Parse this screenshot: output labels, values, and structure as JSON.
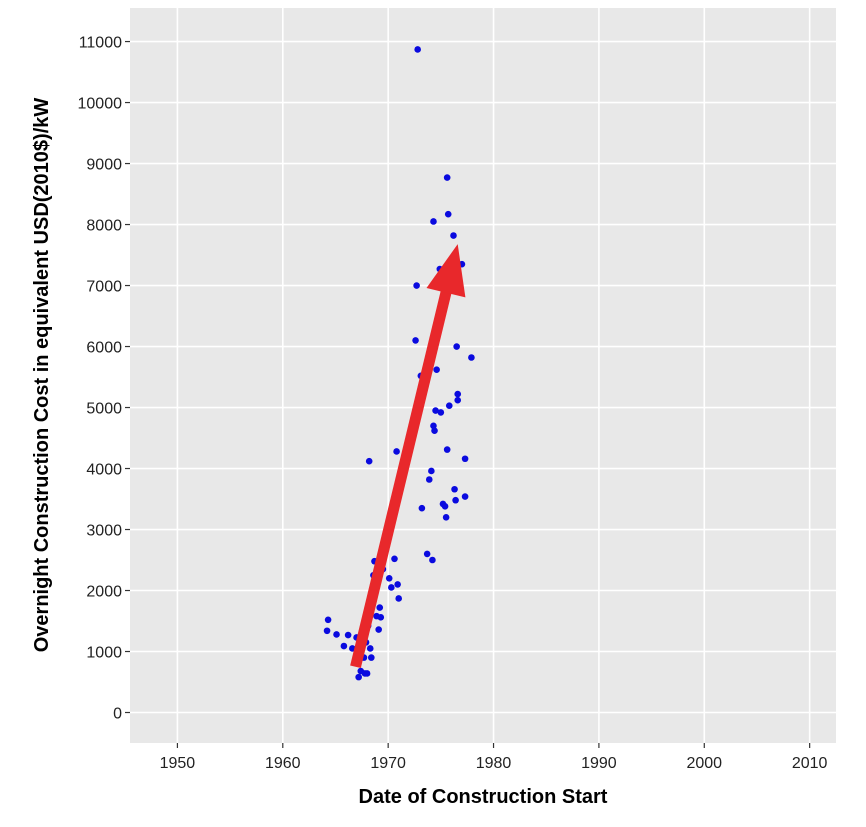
{
  "chart_data": {
    "type": "scatter",
    "xlabel": "Date of Construction Start",
    "ylabel": "Overnight Construction Cost in equivalent USD(2010$)/kW",
    "xlim": [
      1945.5,
      2012.5
    ],
    "ylim": [
      -500,
      11550
    ],
    "x_ticks": [
      1950,
      1960,
      1970,
      1980,
      1990,
      2000,
      2010
    ],
    "y_ticks": [
      0,
      1000,
      2000,
      3000,
      4000,
      5000,
      6000,
      7000,
      8000,
      9000,
      10000,
      11000
    ],
    "grid": true,
    "legend": "none",
    "colors": {
      "panel": "#e8e8e8",
      "grid": "#ffffff",
      "point": "#0a0adf",
      "arrow": "#e8282b"
    },
    "points": [
      {
        "x": 1964.3,
        "y": 1520
      },
      {
        "x": 1964.2,
        "y": 1340
      },
      {
        "x": 1965.1,
        "y": 1280
      },
      {
        "x": 1965.8,
        "y": 1090
      },
      {
        "x": 1966.2,
        "y": 1270
      },
      {
        "x": 1966.6,
        "y": 1050
      },
      {
        "x": 1967.0,
        "y": 1230
      },
      {
        "x": 1967.2,
        "y": 580
      },
      {
        "x": 1967.4,
        "y": 680
      },
      {
        "x": 1967.5,
        "y": 1300
      },
      {
        "x": 1967.7,
        "y": 900
      },
      {
        "x": 1967.8,
        "y": 640
      },
      {
        "x": 1967.9,
        "y": 1150
      },
      {
        "x": 1968.0,
        "y": 640
      },
      {
        "x": 1968.1,
        "y": 1420
      },
      {
        "x": 1968.2,
        "y": 1720
      },
      {
        "x": 1968.3,
        "y": 1050
      },
      {
        "x": 1968.4,
        "y": 900
      },
      {
        "x": 1968.2,
        "y": 4120
      },
      {
        "x": 1968.6,
        "y": 2250
      },
      {
        "x": 1968.7,
        "y": 2480
      },
      {
        "x": 1968.9,
        "y": 1580
      },
      {
        "x": 1969.1,
        "y": 1360
      },
      {
        "x": 1969.2,
        "y": 1720
      },
      {
        "x": 1969.3,
        "y": 1560
      },
      {
        "x": 1969.5,
        "y": 2350
      },
      {
        "x": 1970.1,
        "y": 2200
      },
      {
        "x": 1970.3,
        "y": 2050
      },
      {
        "x": 1970.6,
        "y": 2520
      },
      {
        "x": 1970.9,
        "y": 2100
      },
      {
        "x": 1971.0,
        "y": 1870
      },
      {
        "x": 1970.8,
        "y": 4280
      },
      {
        "x": 1972.6,
        "y": 6100
      },
      {
        "x": 1972.7,
        "y": 7000
      },
      {
        "x": 1972.8,
        "y": 10870
      },
      {
        "x": 1973.1,
        "y": 5520
      },
      {
        "x": 1973.2,
        "y": 3350
      },
      {
        "x": 1973.7,
        "y": 2600
      },
      {
        "x": 1973.9,
        "y": 3820
      },
      {
        "x": 1974.1,
        "y": 3960
      },
      {
        "x": 1974.2,
        "y": 2500
      },
      {
        "x": 1974.3,
        "y": 4700
      },
      {
        "x": 1974.4,
        "y": 4620
      },
      {
        "x": 1974.5,
        "y": 4950
      },
      {
        "x": 1974.3,
        "y": 8050
      },
      {
        "x": 1974.6,
        "y": 5620
      },
      {
        "x": 1974.9,
        "y": 7270
      },
      {
        "x": 1975.0,
        "y": 4920
      },
      {
        "x": 1975.2,
        "y": 3420
      },
      {
        "x": 1975.4,
        "y": 3380
      },
      {
        "x": 1975.5,
        "y": 3200
      },
      {
        "x": 1975.6,
        "y": 4310
      },
      {
        "x": 1975.6,
        "y": 8770
      },
      {
        "x": 1975.7,
        "y": 8170
      },
      {
        "x": 1975.8,
        "y": 5030
      },
      {
        "x": 1976.2,
        "y": 7820
      },
      {
        "x": 1976.3,
        "y": 3660
      },
      {
        "x": 1976.4,
        "y": 3480
      },
      {
        "x": 1976.5,
        "y": 6000
      },
      {
        "x": 1976.6,
        "y": 5220
      },
      {
        "x": 1976.6,
        "y": 5120
      },
      {
        "x": 1977.0,
        "y": 7350
      },
      {
        "x": 1977.3,
        "y": 4160
      },
      {
        "x": 1977.3,
        "y": 3540
      },
      {
        "x": 1977.9,
        "y": 5820
      }
    ],
    "annotations": [
      {
        "type": "arrow",
        "from": {
          "x": 1966.9,
          "y": 750
        },
        "to": {
          "x": 1976.6,
          "y": 7680
        }
      }
    ]
  }
}
